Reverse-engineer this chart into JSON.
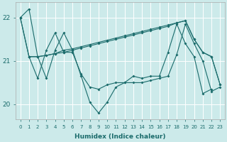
{
  "xlabel": "Humidex (Indice chaleur)",
  "background_color": "#cceaea",
  "grid_color": "#ffffff",
  "line_color": "#1a6b6b",
  "x_ticks": [
    0,
    1,
    2,
    3,
    4,
    5,
    6,
    7,
    8,
    9,
    10,
    11,
    12,
    13,
    14,
    15,
    16,
    17,
    18,
    19,
    20,
    21,
    22,
    23
  ],
  "ylim": [
    19.65,
    22.35
  ],
  "yticks": [
    20,
    21,
    22
  ],
  "figsize": [
    3.2,
    2.0
  ],
  "dpi": 100,
  "seriesA_x": [
    0,
    1,
    2,
    3,
    4,
    5,
    6,
    7,
    8,
    9,
    10,
    11,
    12,
    13,
    14,
    15,
    16,
    17,
    18,
    19,
    20,
    21,
    22
  ],
  "seriesA_y": [
    22.0,
    22.2,
    21.1,
    20.6,
    21.25,
    21.65,
    21.25,
    20.65,
    20.05,
    19.8,
    20.05,
    20.4,
    20.5,
    20.65,
    20.6,
    20.65,
    20.65,
    21.2,
    21.85,
    21.4,
    21.1,
    20.25,
    20.35
  ],
  "seriesB_x": [
    0,
    1,
    2,
    3,
    4,
    5,
    6,
    7,
    8,
    9,
    10,
    11,
    12,
    13,
    14,
    15,
    16,
    17,
    18,
    19,
    20,
    21,
    22,
    23
  ],
  "seriesB_y": [
    22.0,
    21.1,
    21.1,
    21.13,
    21.17,
    21.2,
    21.25,
    21.3,
    21.35,
    21.4,
    21.45,
    21.5,
    21.55,
    21.6,
    21.65,
    21.7,
    21.75,
    21.8,
    21.88,
    21.93,
    21.5,
    21.2,
    21.1,
    20.45
  ],
  "seriesC_x": [
    1,
    2,
    3,
    4,
    5,
    6,
    7,
    8,
    9,
    10,
    11,
    12,
    13,
    14,
    15,
    16,
    17,
    18,
    19,
    20,
    21,
    22,
    23
  ],
  "seriesC_y": [
    21.1,
    20.6,
    21.25,
    21.65,
    21.2,
    21.2,
    20.7,
    20.4,
    20.35,
    20.45,
    20.5,
    20.5,
    20.5,
    20.5,
    20.55,
    20.6,
    20.65,
    21.15,
    21.85,
    21.4,
    21.0,
    20.3,
    20.4
  ],
  "seriesD_x": [
    0,
    1,
    2,
    3,
    4,
    5,
    6,
    7,
    8,
    9,
    10,
    11,
    12,
    13,
    14,
    15,
    16,
    17,
    18,
    19,
    20,
    21,
    22,
    23
  ],
  "seriesD_y": [
    22.0,
    21.1,
    21.1,
    21.13,
    21.17,
    21.25,
    21.28,
    21.33,
    21.38,
    21.43,
    21.48,
    21.53,
    21.58,
    21.63,
    21.68,
    21.73,
    21.78,
    21.83,
    21.88,
    21.93,
    21.5,
    21.2,
    21.1,
    20.45
  ]
}
